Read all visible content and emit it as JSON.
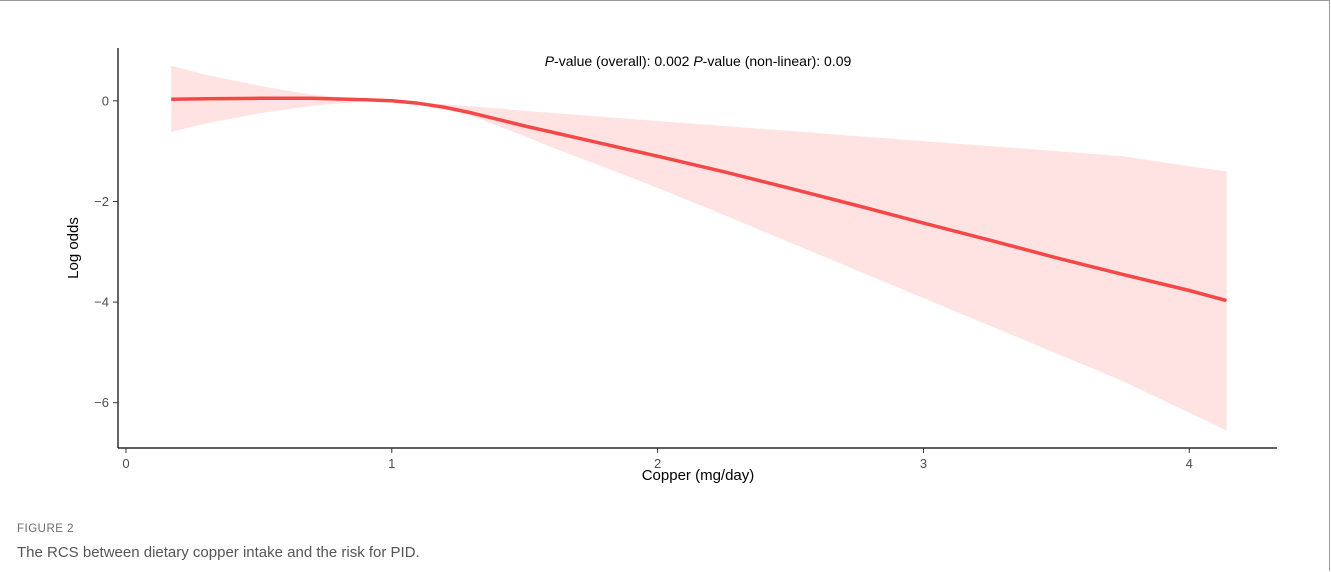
{
  "figure": {
    "label": "FIGURE 2",
    "caption": "The RCS between dietary copper intake and the risk for PID."
  },
  "chart_data": {
    "type": "line",
    "annotation": {
      "part1_italic": "P",
      "part1_rest": "-value (overall): 0.002 ",
      "part2_italic": "P",
      "part2_rest": "-value (non-linear): 0.09"
    },
    "xlabel": "Copper (mg/day)",
    "ylabel": "Log odds",
    "xlim": [
      -0.03,
      4.33
    ],
    "ylim": [
      -6.9,
      1.05
    ],
    "x_ticks": [
      0,
      1,
      2,
      3,
      4
    ],
    "y_ticks": [
      0,
      -2,
      -4,
      -6
    ],
    "x_tick_labels": [
      "0",
      "1",
      "2",
      "3",
      "4"
    ],
    "y_tick_labels": [
      "0",
      "−2",
      "−4",
      "−6"
    ],
    "grid": false,
    "line_color": "#f44848",
    "band_color": "#ffe3e3",
    "series": [
      {
        "x": [
          0.17,
          0.3,
          0.5,
          0.7,
          0.9,
          1.0,
          1.1,
          1.2,
          1.3,
          1.4,
          1.5,
          1.6,
          1.75,
          2.0,
          2.25,
          2.5,
          2.75,
          3.0,
          3.25,
          3.5,
          3.75,
          4.0,
          4.14
        ],
        "y": [
          0.03,
          0.04,
          0.05,
          0.05,
          0.02,
          0.0,
          -0.05,
          -0.13,
          -0.24,
          -0.37,
          -0.5,
          -0.62,
          -0.8,
          -1.1,
          -1.41,
          -1.74,
          -2.08,
          -2.43,
          -2.77,
          -3.12,
          -3.45,
          -3.77,
          -3.97
        ],
        "lower": [
          -0.62,
          -0.45,
          -0.25,
          -0.1,
          -0.01,
          0.0,
          -0.06,
          -0.15,
          -0.3,
          -0.5,
          -0.7,
          -0.92,
          -1.22,
          -1.73,
          -2.27,
          -2.82,
          -3.37,
          -3.92,
          -4.47,
          -5.02,
          -5.57,
          -6.2,
          -6.55
        ],
        "upper": [
          0.7,
          0.52,
          0.3,
          0.12,
          0.03,
          0.0,
          -0.03,
          -0.07,
          -0.11,
          -0.15,
          -0.2,
          -0.24,
          -0.3,
          -0.4,
          -0.5,
          -0.6,
          -0.7,
          -0.8,
          -0.9,
          -1.0,
          -1.1,
          -1.3,
          -1.4
        ]
      }
    ]
  }
}
